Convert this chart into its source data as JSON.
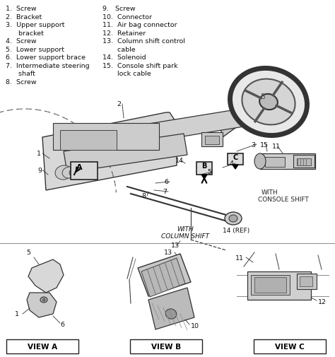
{
  "bg_color": "#f5f5f0",
  "figsize": [
    4.74,
    5.06
  ],
  "dpi": 100,
  "legend_left": [
    "1.  Screw",
    "2.  Bracket",
    "3.  Upper support",
    "      bracket",
    "4.  Screw",
    "5.  Lower support",
    "6.  Lower support brace",
    "7.  Intermediate steering",
    "      shaft",
    "8.  Screw"
  ],
  "legend_right": [
    "9.   Screw",
    "10.  Connector",
    "11.  Air bag connector",
    "12.  Retainer",
    "13.  Column shift control",
    "       cable",
    "14.  Solenoid",
    "15.  Console shift park",
    "       lock cable"
  ],
  "text_color": "#111111",
  "line_color": "#222222",
  "legend_fontsize": 6.8,
  "diagram_color": "#444444",
  "light_gray": "#cccccc",
  "med_gray": "#888888",
  "dark_gray": "#333333"
}
